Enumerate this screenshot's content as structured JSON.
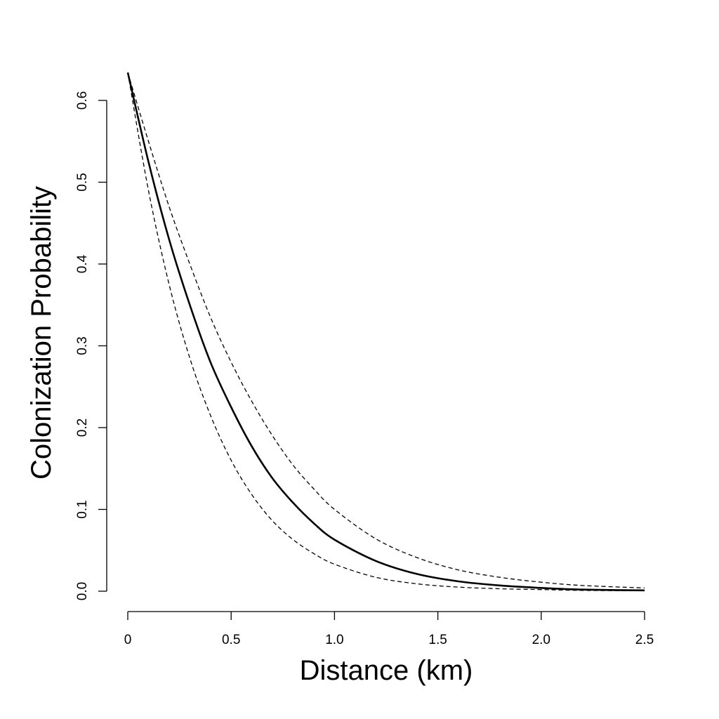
{
  "chart_data": {
    "type": "line",
    "title": "",
    "xlabel": "Distance (km)",
    "ylabel": "Colonization Probability",
    "xlim": [
      0,
      2.5
    ],
    "ylim": [
      0,
      0.6
    ],
    "x_ticks": [
      0,
      0.5,
      1.0,
      1.5,
      2.0,
      2.5
    ],
    "x_tick_labels": [
      "0",
      "0.5",
      "1.0",
      "1.5",
      "2.0",
      "2.5"
    ],
    "y_ticks": [
      0,
      0.1,
      0.2,
      0.3,
      0.4,
      0.5,
      0.6
    ],
    "y_tick_labels": [
      "0.0",
      "0.1",
      "0.2",
      "0.3",
      "0.4",
      "0.5",
      "0.6"
    ],
    "grid": false,
    "legend": "none",
    "series": [
      {
        "style": "solid",
        "color": "#000000",
        "x": [
          0,
          0.1,
          0.2,
          0.3,
          0.4,
          0.5,
          0.6,
          0.7,
          0.8,
          0.9,
          1.0,
          1.2,
          1.4,
          1.6,
          1.8,
          2.0,
          2.2,
          2.5
        ],
        "y": [
          0.634,
          0.525,
          0.43,
          0.35,
          0.28,
          0.225,
          0.177,
          0.138,
          0.108,
          0.083,
          0.063,
          0.037,
          0.021,
          0.012,
          0.007,
          0.004,
          0.002,
          0.001
        ]
      },
      {
        "style": "dashed",
        "color": "#000000",
        "x": [
          0,
          0.1,
          0.2,
          0.3,
          0.4,
          0.5,
          0.6,
          0.7,
          0.8,
          0.9,
          1.0,
          1.2,
          1.4,
          1.6,
          1.8,
          2.0,
          2.2,
          2.5
        ],
        "y": [
          0.634,
          0.55,
          0.47,
          0.4,
          0.335,
          0.28,
          0.232,
          0.19,
          0.154,
          0.125,
          0.1,
          0.064,
          0.041,
          0.026,
          0.017,
          0.011,
          0.007,
          0.004
        ]
      },
      {
        "style": "dashed",
        "color": "#000000",
        "x": [
          0,
          0.1,
          0.2,
          0.3,
          0.4,
          0.5,
          0.6,
          0.7,
          0.8,
          0.9,
          1.0,
          1.2,
          1.4,
          1.6,
          1.8,
          2.0,
          2.2,
          2.5
        ],
        "y": [
          0.634,
          0.49,
          0.375,
          0.285,
          0.215,
          0.16,
          0.118,
          0.086,
          0.063,
          0.046,
          0.033,
          0.017,
          0.009,
          0.005,
          0.003,
          0.002,
          0.001,
          0.0005
        ]
      }
    ]
  }
}
